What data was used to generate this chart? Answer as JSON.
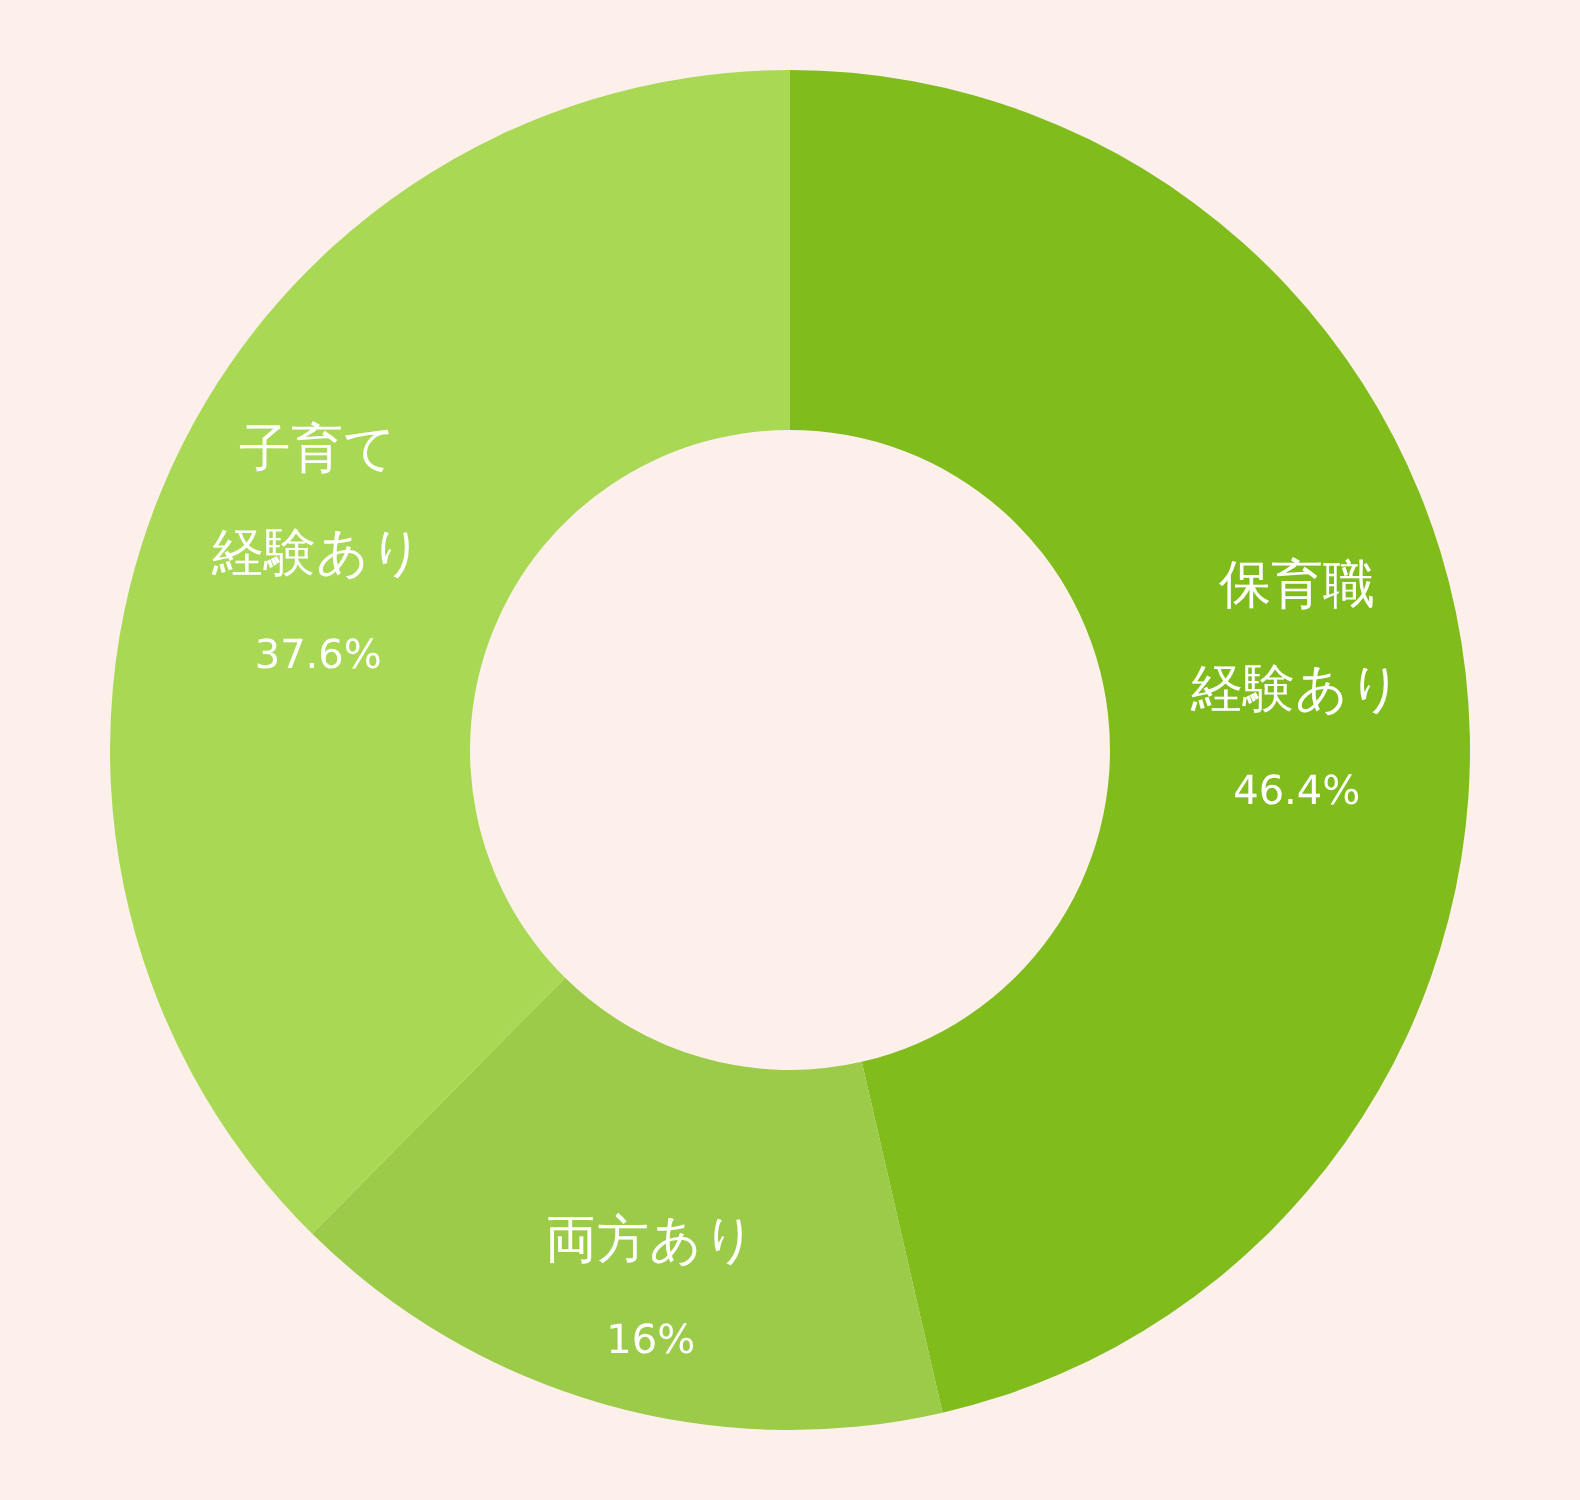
{
  "chart_data": {
    "type": "donut",
    "categories": [
      "保育職経験あり",
      "両方あり",
      "子育て経験あり"
    ],
    "values": [
      46.4,
      16,
      37.6
    ],
    "colors": [
      "#80bc1c",
      "#9bcb48",
      "#a8d854"
    ],
    "value_labels": [
      "46.4%",
      "16%",
      "37.6%"
    ]
  }
}
